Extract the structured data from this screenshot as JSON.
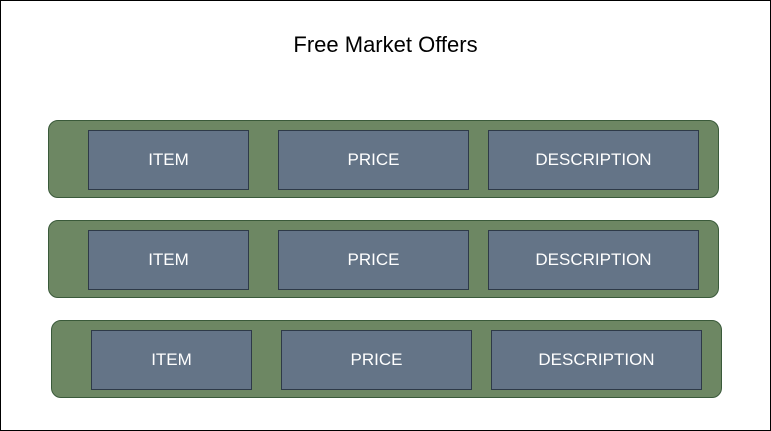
{
  "title": "Free Market Offers",
  "colors": {
    "row_fill": "#6d8763",
    "cell_fill": "#647487",
    "cell_text": "#ffffff"
  },
  "rows": [
    {
      "item": "ITEM",
      "price": "PRICE",
      "description": "DESCRIPTION"
    },
    {
      "item": "ITEM",
      "price": "PRICE",
      "description": "DESCRIPTION"
    },
    {
      "item": "ITEM",
      "price": "PRICE",
      "description": "DESCRIPTION"
    }
  ]
}
